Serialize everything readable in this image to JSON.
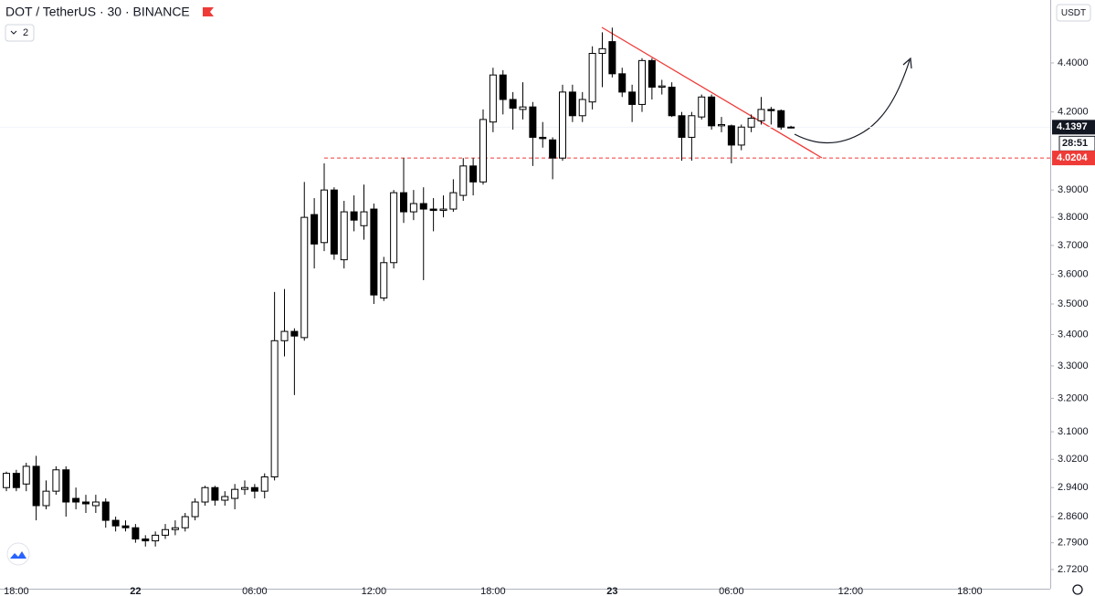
{
  "chart_data": {
    "type": "candlestick",
    "title": "DOT / TetherUS · 30 · BINANCE",
    "indicator_count": "2",
    "currency": "USDT",
    "log_scale": true,
    "up_color": "#ffffff",
    "down_color": "#000000",
    "level_color": "#ef3b37",
    "categories": [
      null,
      "18:00",
      null,
      null,
      null,
      null,
      null,
      null,
      null,
      null,
      null,
      null,
      null,
      "22",
      null,
      null,
      null,
      null,
      null,
      null,
      null,
      null,
      null,
      null,
      null,
      "06:00",
      null,
      null,
      null,
      null,
      null,
      null,
      null,
      null,
      null,
      null,
      null,
      "12:00",
      null,
      null,
      null,
      null,
      null,
      null,
      null,
      null,
      null,
      null,
      null,
      "18:00",
      null,
      null,
      null,
      null,
      null,
      null,
      null,
      null,
      null,
      null,
      null,
      "23",
      null,
      null,
      null,
      null,
      null,
      null,
      null,
      null,
      null,
      null,
      null,
      "06:00",
      null,
      null,
      null,
      null,
      null,
      null,
      null,
      null,
      null,
      null,
      null,
      "12:00",
      null,
      null,
      null,
      null,
      null,
      null,
      null,
      null,
      null,
      null,
      null,
      "18:00",
      null,
      null,
      null,
      null,
      null,
      null,
      null
    ],
    "open": [
      2.94,
      2.98,
      2.95,
      3.0,
      2.89,
      2.93,
      2.99,
      2.91,
      2.9,
      2.89,
      2.9,
      2.85,
      2.835,
      2.83,
      2.8,
      2.795,
      2.81,
      2.825,
      2.83,
      2.86,
      2.9,
      2.94,
      2.905,
      2.91,
      2.935,
      2.94,
      2.93,
      2.97,
      3.38,
      3.41,
      3.39,
      3.81,
      3.71,
      3.9,
      3.65,
      3.82,
      3.77,
      3.83,
      3.52,
      3.64,
      3.89,
      3.82,
      3.85,
      3.83,
      3.825,
      3.83,
      3.88,
      3.99,
      3.93,
      4.16,
      4.35,
      4.25,
      4.21,
      4.22,
      4.1,
      4.09,
      4.02,
      4.28,
      4.185,
      4.24,
      4.44,
      4.49,
      4.355,
      4.28,
      4.23,
      4.41,
      4.3,
      4.3,
      4.185,
      4.1,
      4.18,
      4.26,
      4.145,
      4.145,
      4.07,
      4.14,
      4.165,
      4.21,
      4.205,
      4.14,
      null,
      null,
      null,
      null,
      null,
      null,
      null,
      null,
      null,
      null,
      null,
      null,
      null,
      null,
      null,
      null,
      null,
      null,
      null,
      null,
      null,
      null,
      null,
      null,
      null
    ],
    "high": [
      2.985,
      2.99,
      3.01,
      3.03,
      2.96,
      3.0,
      3.0,
      2.94,
      2.92,
      2.92,
      2.91,
      2.86,
      2.85,
      2.84,
      2.81,
      2.82,
      2.84,
      2.85,
      2.87,
      2.91,
      2.945,
      2.945,
      2.93,
      2.95,
      2.96,
      2.95,
      2.98,
      3.54,
      3.55,
      3.42,
      3.93,
      3.87,
      4.0,
      3.91,
      3.86,
      3.88,
      3.92,
      3.85,
      3.66,
      3.9,
      4.02,
      3.9,
      3.91,
      3.87,
      3.88,
      3.94,
      4.02,
      4.02,
      4.21,
      4.38,
      4.37,
      4.28,
      4.32,
      4.24,
      4.16,
      4.1,
      4.31,
      4.31,
      4.28,
      4.47,
      4.53,
      4.55,
      4.38,
      4.31,
      4.42,
      4.42,
      4.33,
      4.32,
      4.2,
      4.2,
      4.27,
      4.27,
      4.18,
      4.15,
      4.15,
      4.19,
      4.26,
      4.22,
      4.21,
      4.145,
      null,
      null,
      null,
      null,
      null,
      null,
      null,
      null,
      null,
      null,
      null,
      null,
      null,
      null,
      null,
      null,
      null,
      null,
      null,
      null,
      null,
      null,
      null,
      null,
      null
    ],
    "low": [
      2.93,
      2.93,
      2.93,
      2.85,
      2.88,
      2.92,
      2.86,
      2.88,
      2.87,
      2.87,
      2.83,
      2.82,
      2.82,
      2.79,
      2.78,
      2.78,
      2.8,
      2.81,
      2.82,
      2.85,
      2.89,
      2.89,
      2.89,
      2.88,
      2.92,
      2.91,
      2.91,
      2.96,
      3.33,
      3.21,
      3.38,
      3.62,
      3.68,
      3.65,
      3.62,
      3.75,
      3.72,
      3.5,
      3.51,
      3.62,
      3.78,
      3.79,
      3.58,
      3.75,
      3.8,
      3.82,
      3.86,
      3.88,
      3.92,
      4.12,
      4.19,
      4.13,
      4.17,
      3.99,
      4.06,
      3.94,
      4.01,
      4.16,
      4.16,
      4.21,
      4.3,
      4.34,
      4.26,
      4.16,
      4.2,
      4.25,
      4.27,
      4.18,
      4.01,
      4.01,
      4.17,
      4.13,
      4.12,
      4.0,
      4.05,
      4.12,
      4.15,
      4.15,
      4.13,
      4.135,
      null,
      null,
      null,
      null,
      null,
      null,
      null,
      null,
      null,
      null,
      null,
      null,
      null,
      null,
      null,
      null,
      null,
      null,
      null,
      null,
      null,
      null,
      null,
      null,
      null
    ],
    "close": [
      2.98,
      2.94,
      3.0,
      2.89,
      2.93,
      2.99,
      2.9,
      2.9,
      2.895,
      2.9,
      2.85,
      2.835,
      2.83,
      2.8,
      2.795,
      2.81,
      2.825,
      2.83,
      2.86,
      2.9,
      2.94,
      2.905,
      2.915,
      2.935,
      2.94,
      2.93,
      2.97,
      3.38,
      3.41,
      3.395,
      3.8,
      3.705,
      3.9,
      3.67,
      3.82,
      3.79,
      3.82,
      3.53,
      3.64,
      3.89,
      3.82,
      3.85,
      3.83,
      3.825,
      3.83,
      3.89,
      3.99,
      3.93,
      4.17,
      4.35,
      4.25,
      4.215,
      4.22,
      4.1,
      4.095,
      4.02,
      4.28,
      4.185,
      4.25,
      4.44,
      4.46,
      4.355,
      4.28,
      4.23,
      4.41,
      4.3,
      4.305,
      4.185,
      4.1,
      4.185,
      4.26,
      4.145,
      4.15,
      4.07,
      4.14,
      4.175,
      4.21,
      4.205,
      4.14,
      4.1397,
      null,
      null,
      null,
      null,
      null,
      null,
      null,
      null,
      null,
      null,
      null,
      null,
      null,
      null,
      null,
      null,
      null,
      null,
      null,
      null,
      null,
      null,
      null,
      null,
      null
    ],
    "ylim": [
      2.6755,
      4.671
    ],
    "yticks": [
      {
        "value": 4.4,
        "label": "4.4000"
      },
      {
        "value": 4.2,
        "label": "4.2000"
      },
      {
        "value": 3.9,
        "label": "3.9000"
      },
      {
        "value": 3.8,
        "label": "3.8000"
      },
      {
        "value": 3.7,
        "label": "3.7000"
      },
      {
        "value": 3.6,
        "label": "3.6000"
      },
      {
        "value": 3.5,
        "label": "3.5000"
      },
      {
        "value": 3.4,
        "label": "3.4000"
      },
      {
        "value": 3.3,
        "label": "3.3000"
      },
      {
        "value": 3.2,
        "label": "3.2000"
      },
      {
        "value": 3.1,
        "label": "3.1000"
      },
      {
        "value": 3.02,
        "label": "3.0200"
      },
      {
        "value": 2.94,
        "label": "2.9400"
      },
      {
        "value": 2.86,
        "label": "2.8600"
      },
      {
        "value": 2.79,
        "label": "2.7900"
      },
      {
        "value": 2.72,
        "label": "2.7200"
      }
    ],
    "last_price": 4.1397,
    "countdown": "28:51",
    "level": 4.0204
  }
}
